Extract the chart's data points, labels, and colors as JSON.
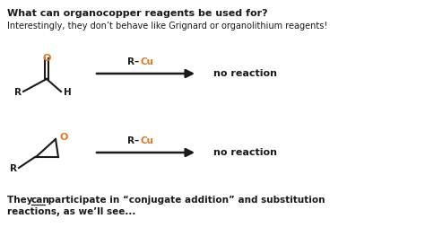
{
  "bg_color": "#ffffff",
  "title": "What can organocopper reagents be used for?",
  "subtitle": "Interestingly, they don’t behave like Grignard or organolithium reagents!",
  "no_reaction": "no reaction",
  "orange_color": "#e07820",
  "black_color": "#1a1a1a",
  "footer_bold": "They ",
  "footer_can": "can",
  "footer_rest": " participate in “conjugate addition” and substitution",
  "footer_line2": "reactions, as we’ll see...",
  "figw": 4.74,
  "figh": 2.63,
  "dpi": 100
}
